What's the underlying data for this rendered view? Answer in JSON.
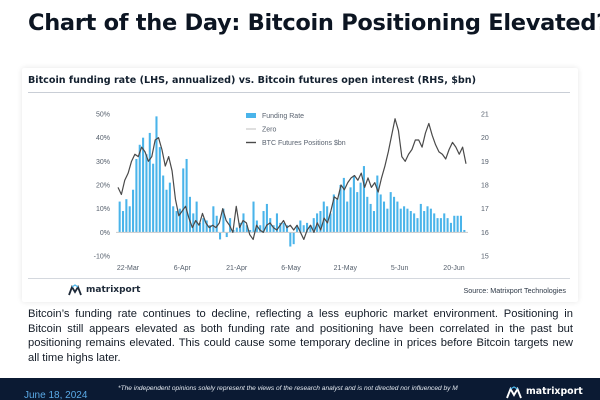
{
  "headline": "Chart of the Day: Bitcoin Positioning Elevated?",
  "chart_title": "Bitcoin funding rate (LHS, annualized) vs. Bitcoin futures open interest (RHS, $bn)",
  "colors": {
    "funding_bars": "#4ab4ea",
    "zero_line": "#c9c9c9",
    "futures_line": "#4a4a4a",
    "footer_bar": "#0b1a33",
    "date_text": "#5aa9e6"
  },
  "chart_data": {
    "type": "bar",
    "x_tick_labels": [
      "22-Mar",
      "6-Apr",
      "21-Apr",
      "6-May",
      "21-May",
      "5-Jun",
      "20-Jun"
    ],
    "y_left": {
      "ylim": [
        -10,
        50
      ],
      "tick_labels": [
        "-10%",
        "0%",
        "10%",
        "20%",
        "30%",
        "40%",
        "50%"
      ]
    },
    "y_right": {
      "ylim": [
        15,
        21
      ],
      "tick_labels": [
        "15",
        "16",
        "17",
        "18",
        "19",
        "20",
        "21"
      ]
    },
    "legend": [
      "Funding Rate",
      "Zero",
      "BTC Futures Positions $bn"
    ],
    "legend_position": "top",
    "grid": false,
    "series": [
      {
        "name": "Funding Rate",
        "type": "bar",
        "axis": "left",
        "values": [
          13,
          9,
          14,
          11,
          18,
          31,
          37,
          40,
          33,
          42,
          29,
          49,
          36,
          24,
          18,
          21,
          11,
          9,
          10,
          27,
          31,
          15,
          8,
          13,
          4,
          6,
          5,
          3,
          11,
          7,
          -3,
          10,
          -2,
          6,
          1,
          2,
          4,
          8,
          3,
          1,
          13,
          5,
          3,
          9,
          12,
          6,
          3,
          8,
          4,
          4,
          3,
          -6,
          -5,
          3,
          5,
          3,
          4,
          3,
          6,
          8,
          9,
          13,
          11,
          8,
          16,
          14,
          20,
          23,
          13,
          19,
          24,
          17,
          21,
          28,
          15,
          12,
          9,
          24,
          16,
          13,
          10,
          17,
          15,
          13,
          10,
          11,
          10,
          9,
          8,
          6,
          12,
          9,
          11,
          10,
          8,
          6,
          6,
          8,
          6,
          4,
          7,
          7,
          7,
          1
        ]
      },
      {
        "name": "Zero",
        "type": "line",
        "axis": "left",
        "values": [
          0,
          0
        ]
      },
      {
        "name": "BTC Futures Positions $bn",
        "type": "line",
        "axis": "right",
        "values": [
          17.9,
          17.6,
          18.2,
          18.5,
          19.0,
          19.3,
          19.2,
          19.6,
          19.4,
          19.0,
          19.2,
          19.9,
          20.0,
          19.5,
          18.8,
          19.2,
          18.6,
          17.4,
          16.7,
          16.9,
          17.1,
          16.6,
          16.2,
          16.5,
          16.3,
          16.8,
          16.4,
          16.2,
          16.3,
          16.2,
          16.4,
          17.0,
          16.5,
          16.3,
          16.0,
          17.1,
          16.2,
          16.5,
          16.4,
          15.9,
          15.7,
          16.3,
          16.1,
          16.0,
          16.3,
          16.4,
          16.2,
          16.1,
          16.3,
          16.5,
          16.2,
          16.3,
          16.1,
          16.3,
          16.0,
          15.7,
          16.1,
          16.3,
          16.0,
          16.4,
          16.1,
          16.6,
          16.4,
          16.9,
          17.5,
          17.4,
          18.0,
          17.8,
          18.1,
          18.3,
          18.4,
          18.2,
          18.5,
          17.9,
          18.3,
          17.9,
          18.1,
          17.7,
          18.3,
          18.8,
          19.4,
          20.1,
          20.8,
          20.3,
          19.2,
          19.0,
          19.3,
          19.5,
          19.9,
          19.9,
          19.6,
          20.2,
          20.6,
          20.1,
          19.7,
          19.4,
          19.3,
          19.1,
          19.5,
          19.8,
          19.6,
          19.3,
          19.6,
          18.9
        ]
      }
    ]
  },
  "brand_name": "matrixport",
  "source": "Source: Matrixport Technologies",
  "body_text": "Bitcoin’s funding rate continues to decline, reflecting a less euphoric market environment. Positioning in Bitcoin still appears elevated as both funding rate and positioning have been correlated in the past but positioning remains elevated. This could cause some temporary decline in prices before Bitcoin targets new all time highs later.",
  "footer": {
    "date": "June 18, 2024",
    "disclaimer": "*The independent opinions solely represent the views of the research analyst and is not directed nor influenced by Matrixport.",
    "brand_name": "matrixport"
  }
}
